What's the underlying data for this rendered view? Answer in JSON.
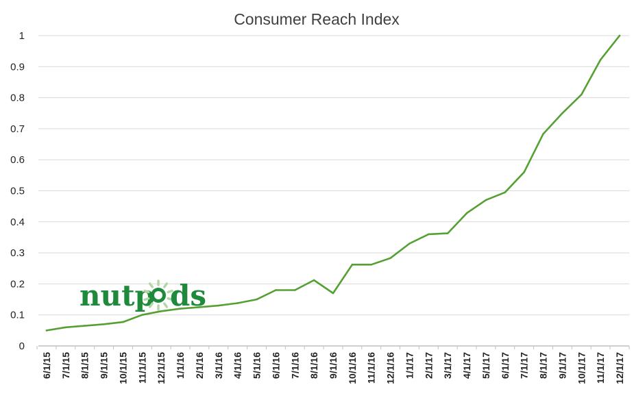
{
  "chart_data": {
    "type": "line",
    "title": "Consumer Reach Index",
    "xlabel": "",
    "ylabel": "",
    "ylim": [
      0,
      1
    ],
    "yticks": [
      "0",
      "0.1",
      "0.2",
      "0.3",
      "0.4",
      "0.5",
      "0.6",
      "0.7",
      "0.8",
      "0.9",
      "1"
    ],
    "grid": true,
    "legend": "none",
    "categories": [
      "6/1/15",
      "7/1/15",
      "8/1/15",
      "9/1/15",
      "10/1/15",
      "11/1/15",
      "12/1/15",
      "1/1/16",
      "2/1/16",
      "3/1/16",
      "4/1/16",
      "5/1/16",
      "6/1/16",
      "7/1/16",
      "8/1/16",
      "9/1/16",
      "10/1/16",
      "11/1/16",
      "12/1/16",
      "1/1/17",
      "2/1/17",
      "3/1/17",
      "4/1/17",
      "5/1/17",
      "6/1/17",
      "7/1/17",
      "8/1/17",
      "9/1/17",
      "10/1/17",
      "11/1/17",
      "12/1/17"
    ],
    "series": [
      {
        "values": [
          0.05,
          0.06,
          0.065,
          0.07,
          0.077,
          0.1,
          0.112,
          0.12,
          0.125,
          0.13,
          0.138,
          0.15,
          0.18,
          0.18,
          0.212,
          0.17,
          0.262,
          0.262,
          0.283,
          0.33,
          0.36,
          0.363,
          0.428,
          0.47,
          0.495,
          0.56,
          0.683,
          0.75,
          0.81,
          0.922,
          1.0
        ],
        "color": "#54a033"
      }
    ],
    "line_color": "#54a033",
    "grid_color": "#d9d9d9",
    "axis_color": "#bfbfbf"
  },
  "logo": {
    "text_before": "nutp",
    "text_after": "ds",
    "color": "#1f8a3c",
    "icon": "sunburst-o-icon",
    "ray_color": "#b5d7a4"
  }
}
